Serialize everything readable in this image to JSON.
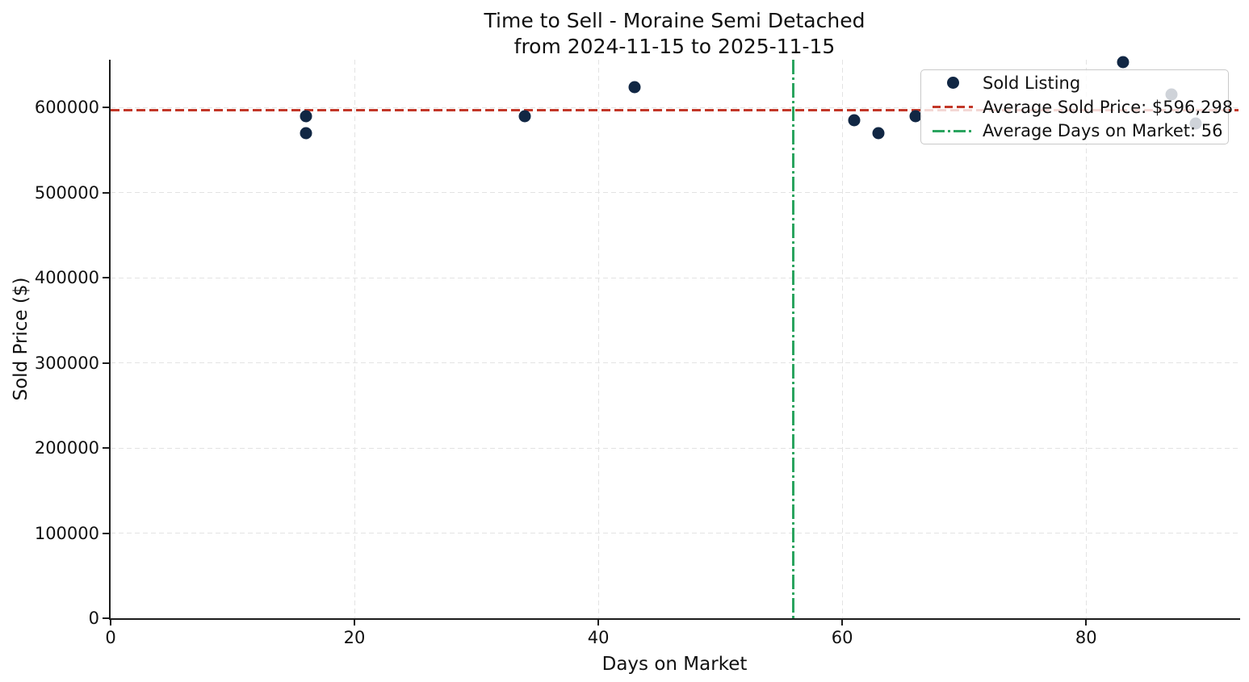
{
  "title": {
    "line1": "Time to Sell - Moraine Semi Detached",
    "line2": "from 2024-11-15 to 2025-11-15"
  },
  "chart_data": {
    "type": "scatter",
    "title": "Time to Sell - Moraine Semi Detached from 2024-11-15 to 2025-11-15",
    "xlabel": "Days on Market",
    "ylabel": "Sold Price ($)",
    "xlim": [
      0,
      92.5
    ],
    "ylim": [
      0,
      656000
    ],
    "xticks": [
      0,
      20,
      40,
      60,
      80
    ],
    "yticks": [
      0,
      100000,
      200000,
      300000,
      400000,
      500000,
      600000
    ],
    "grid": true,
    "legend_position": "upper-right",
    "series": [
      {
        "name": "Sold Listing",
        "marker": "circle",
        "color": "#112744",
        "points": [
          [
            16,
            590000
          ],
          [
            16,
            570000
          ],
          [
            34,
            590000
          ],
          [
            43,
            624000
          ],
          [
            61,
            585000
          ],
          [
            63,
            570000
          ],
          [
            66,
            590000
          ],
          [
            83,
            653000
          ],
          [
            87,
            615000
          ],
          [
            89,
            581000
          ]
        ]
      }
    ],
    "avg_sold_price": 596298,
    "avg_days_on_market": 56
  },
  "legend": {
    "items": [
      {
        "label": "Sold Listing",
        "handle": "dot",
        "color": "#112744"
      },
      {
        "label": "Average Sold Price: $596,298",
        "handle": "dashed-line",
        "color": "#c23728"
      },
      {
        "label": "Average Days on Market: 56",
        "handle": "dashdot-line",
        "color": "#2aa45f"
      }
    ]
  },
  "colors": {
    "marker": "#112744",
    "avg_price_line": "#c23728",
    "avg_days_line": "#2aa45f",
    "grid": "#e3e3e3",
    "spine": "#1c1c1c",
    "text": "#111111",
    "background": "#ffffff"
  }
}
